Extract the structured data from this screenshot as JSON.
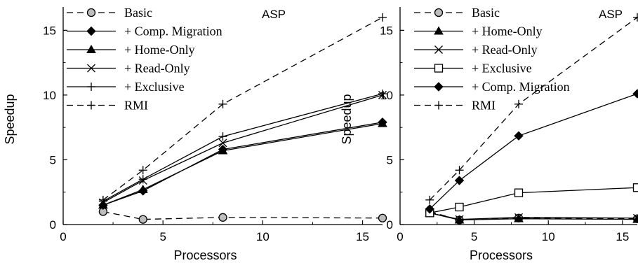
{
  "chart_data": [
    {
      "type": "line",
      "title": "ASP",
      "xlabel": "Processors",
      "ylabel": "Speedup",
      "xlim": [
        0,
        16
      ],
      "ylim": [
        0,
        16.8
      ],
      "xticks": [
        0,
        5,
        10,
        15
      ],
      "yticks": [
        0,
        5,
        10,
        15
      ],
      "x_tick_labels": [
        "0",
        "5",
        "10",
        "15"
      ],
      "y_tick_labels": [
        "0",
        "5",
        "10",
        "15"
      ],
      "legend_position": "top-left",
      "grid": false,
      "series": [
        {
          "name": "Basic",
          "marker": "circle",
          "line": "dashed",
          "x": [
            2,
            4,
            8,
            16
          ],
          "y": [
            1.0,
            0.4,
            0.55,
            0.5
          ]
        },
        {
          "name": "+ Comp. Migration",
          "marker": "diamond",
          "line": "solid",
          "x": [
            2,
            4,
            8,
            16
          ],
          "y": [
            1.5,
            2.6,
            5.8,
            7.9
          ]
        },
        {
          "name": "+ Home-Only",
          "marker": "triangle",
          "line": "solid",
          "x": [
            2,
            4,
            8,
            16
          ],
          "y": [
            1.5,
            2.7,
            5.7,
            7.8
          ]
        },
        {
          "name": "+ Read-Only",
          "marker": "x",
          "line": "solid",
          "x": [
            2,
            4,
            8,
            16
          ],
          "y": [
            1.7,
            3.4,
            6.3,
            10.0
          ]
        },
        {
          "name": "+ Exclusive",
          "marker": "plus",
          "line": "solid",
          "x": [
            2,
            4,
            8,
            16
          ],
          "y": [
            1.8,
            3.5,
            6.8,
            10.1
          ]
        },
        {
          "name": "RMI",
          "marker": "plus",
          "line": "dashed",
          "x": [
            2,
            4,
            8,
            16
          ],
          "y": [
            1.9,
            4.2,
            9.3,
            16.0
          ]
        }
      ]
    },
    {
      "type": "line",
      "title": "ASP",
      "xlabel": "Processors",
      "ylabel": "Speedup",
      "xlim": [
        0,
        16
      ],
      "ylim": [
        0,
        16.8
      ],
      "xticks": [
        0,
        5,
        10,
        15
      ],
      "yticks": [
        0,
        5,
        10,
        15
      ],
      "x_tick_labels": [
        "0",
        "5",
        "10",
        "15"
      ],
      "y_tick_labels": [
        "0",
        "5",
        "10",
        "15"
      ],
      "legend_position": "top-left",
      "grid": false,
      "series": [
        {
          "name": "Basic",
          "marker": "circle",
          "line": "dashed",
          "x": [
            2,
            4,
            8,
            16
          ],
          "y": [
            1.0,
            0.35,
            0.5,
            0.45
          ]
        },
        {
          "name": "+ Home-Only",
          "marker": "triangle",
          "line": "solid",
          "x": [
            2,
            4,
            8,
            16
          ],
          "y": [
            0.9,
            0.35,
            0.45,
            0.4
          ]
        },
        {
          "name": "+ Read-Only",
          "marker": "x",
          "line": "solid",
          "x": [
            2,
            4,
            8,
            16
          ],
          "y": [
            0.9,
            0.4,
            0.55,
            0.5
          ]
        },
        {
          "name": "+ Exclusive",
          "marker": "square",
          "line": "solid",
          "x": [
            2,
            4,
            8,
            16
          ],
          "y": [
            0.9,
            1.35,
            2.45,
            2.85
          ]
        },
        {
          "name": "+ Comp. Migration",
          "marker": "diamond",
          "line": "solid",
          "x": [
            2,
            4,
            8,
            16
          ],
          "y": [
            1.2,
            3.4,
            6.85,
            10.1
          ]
        },
        {
          "name": "RMI",
          "marker": "plus",
          "line": "dashed",
          "x": [
            2,
            4,
            8,
            16
          ],
          "y": [
            1.9,
            4.2,
            9.3,
            16.0
          ]
        }
      ]
    }
  ]
}
